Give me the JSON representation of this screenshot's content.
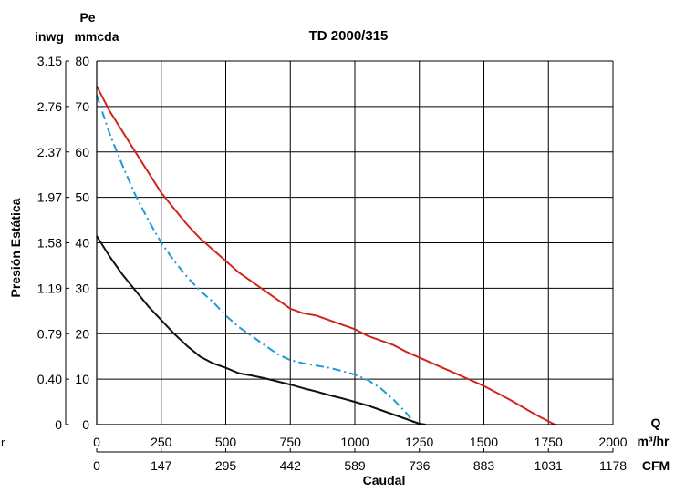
{
  "chart_data": {
    "type": "line",
    "title": "TD 2000/315",
    "xlabel": "Caudal",
    "ylabel": "Presión Estática",
    "y_unit_pe": "Pe",
    "y_unit_mmcda": "mmcda",
    "y_unit_inwg": "inwg",
    "x_unit_q": "Q",
    "x_unit_m3hr": "m³/hr",
    "x_unit_cfm": "CFM",
    "left_edge_fragment": "r",
    "xlim": [
      0,
      2000
    ],
    "ylim": [
      0,
      80
    ],
    "grid": true,
    "x_ticks": [
      "0",
      "250",
      "500",
      "750",
      "1000",
      "1250",
      "1500",
      "1750",
      "2000"
    ],
    "x_ticks_cfm": [
      "0",
      "147",
      "295",
      "442",
      "589",
      "736",
      "883",
      "1031",
      "1178"
    ],
    "y_ticks_mmcda": [
      "0",
      "10",
      "20",
      "30",
      "40",
      "50",
      "60",
      "70",
      "80"
    ],
    "y_ticks_inwg": [
      "0",
      "0.40",
      "0.79",
      "1.19",
      "1.58",
      "1.97",
      "2.37",
      "2.76",
      "3.15"
    ],
    "series": [
      {
        "color": "#d0261c",
        "dash": "solid",
        "points": [
          [
            0,
            74.5
          ],
          [
            50,
            69
          ],
          [
            100,
            64.5
          ],
          [
            150,
            60
          ],
          [
            200,
            55.5
          ],
          [
            250,
            51
          ],
          [
            300,
            47.5
          ],
          [
            350,
            44
          ],
          [
            400,
            41
          ],
          [
            450,
            38.5
          ],
          [
            500,
            36
          ],
          [
            550,
            33.5
          ],
          [
            600,
            31.5
          ],
          [
            650,
            29.5
          ],
          [
            700,
            27.5
          ],
          [
            750,
            25.5
          ],
          [
            800,
            24.5
          ],
          [
            850,
            24
          ],
          [
            900,
            23
          ],
          [
            950,
            22
          ],
          [
            1000,
            21
          ],
          [
            1050,
            19.5
          ],
          [
            1100,
            18.5
          ],
          [
            1150,
            17.5
          ],
          [
            1200,
            16
          ],
          [
            1300,
            13.5
          ],
          [
            1400,
            11
          ],
          [
            1500,
            8.5
          ],
          [
            1600,
            5.5
          ],
          [
            1700,
            2.2
          ],
          [
            1775,
            0
          ]
        ]
      },
      {
        "color": "#1f9ad6",
        "dash": "dashdot",
        "points": [
          [
            0,
            72.5
          ],
          [
            50,
            64
          ],
          [
            100,
            57
          ],
          [
            150,
            50.5
          ],
          [
            200,
            45
          ],
          [
            250,
            40
          ],
          [
            300,
            36
          ],
          [
            350,
            32.5
          ],
          [
            400,
            29.5
          ],
          [
            450,
            27
          ],
          [
            500,
            24
          ],
          [
            550,
            21.5
          ],
          [
            600,
            19.5
          ],
          [
            650,
            17.5
          ],
          [
            700,
            15.5
          ],
          [
            750,
            14.2
          ],
          [
            800,
            13.5
          ],
          [
            850,
            13
          ],
          [
            900,
            12.5
          ],
          [
            950,
            11.8
          ],
          [
            1000,
            11
          ],
          [
            1050,
            9.8
          ],
          [
            1100,
            8
          ],
          [
            1150,
            5.5
          ],
          [
            1200,
            2.5
          ],
          [
            1235,
            0
          ]
        ]
      },
      {
        "color": "#111111",
        "dash": "solid",
        "points": [
          [
            0,
            41.5
          ],
          [
            50,
            37
          ],
          [
            100,
            33
          ],
          [
            150,
            29.5
          ],
          [
            200,
            26
          ],
          [
            250,
            23
          ],
          [
            300,
            20
          ],
          [
            350,
            17.3
          ],
          [
            400,
            15
          ],
          [
            450,
            13.5
          ],
          [
            500,
            12.5
          ],
          [
            550,
            11.3
          ],
          [
            600,
            10.8
          ],
          [
            650,
            10.2
          ],
          [
            700,
            9.5
          ],
          [
            750,
            8.8
          ],
          [
            800,
            8
          ],
          [
            850,
            7.3
          ],
          [
            900,
            6.5
          ],
          [
            950,
            5.8
          ],
          [
            1000,
            5
          ],
          [
            1050,
            4.2
          ],
          [
            1100,
            3.2
          ],
          [
            1150,
            2.2
          ],
          [
            1200,
            1.2
          ],
          [
            1250,
            0.2
          ],
          [
            1275,
            0
          ]
        ]
      }
    ]
  }
}
